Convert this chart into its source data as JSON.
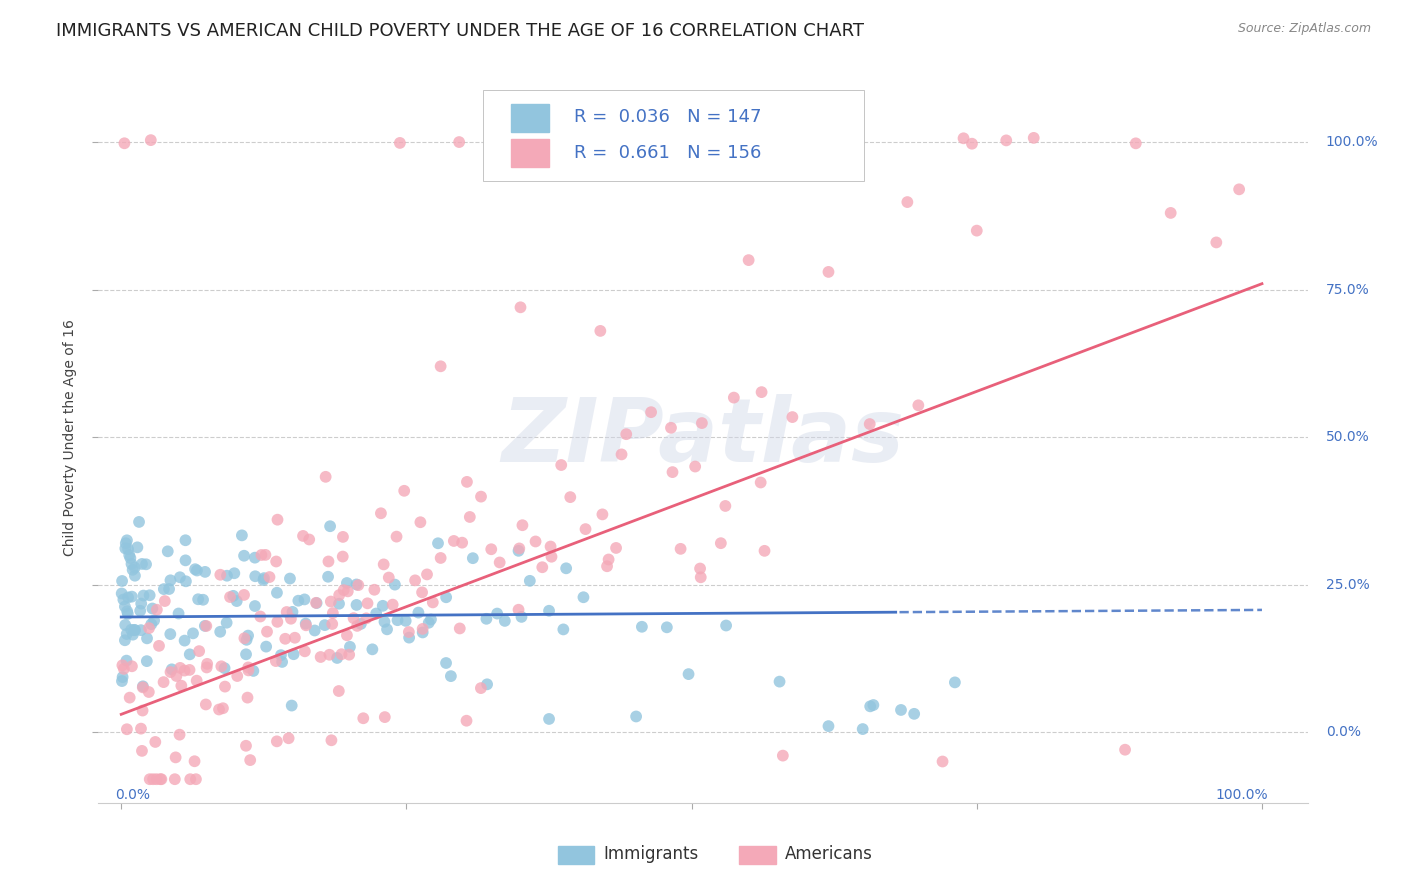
{
  "title": "IMMIGRANTS VS AMERICAN CHILD POVERTY UNDER THE AGE OF 16 CORRELATION CHART",
  "source": "Source: ZipAtlas.com",
  "ylabel": "Child Poverty Under the Age of 16",
  "immigrants_color": "#92c5de",
  "americans_color": "#f4a9b8",
  "immigrants_line_color": "#4472c4",
  "americans_line_color": "#e8607a",
  "R_immigrants": 0.036,
  "N_immigrants": 147,
  "R_americans": 0.661,
  "N_americans": 156,
  "legend_text_color": "#4472c4",
  "background_color": "#ffffff",
  "grid_color": "#c8c8c8",
  "watermark": "ZIPatlas",
  "title_fontsize": 13,
  "axis_label_fontsize": 10,
  "tick_label_fontsize": 10,
  "legend_fontsize": 13
}
